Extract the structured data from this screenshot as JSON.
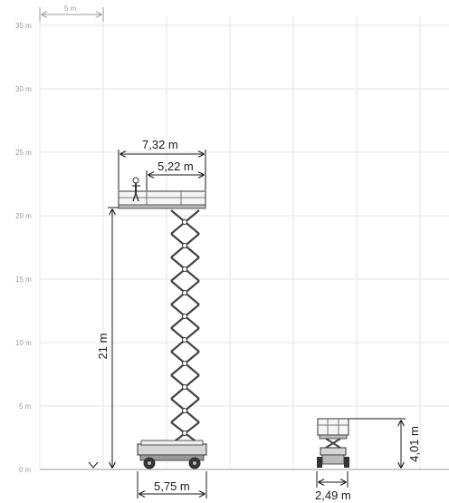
{
  "scale": {
    "label": "5 m"
  },
  "y_axis": {
    "labels": [
      "35 m",
      "30 m",
      "25 m",
      "20 m",
      "15 m",
      "10 m",
      "5 m",
      "0 m"
    ]
  },
  "dimensions": {
    "platform_total": "7,32 m",
    "platform_extension": "5,22 m",
    "platform_height": "21 m",
    "base_length": "5,75 m",
    "stowed_height": "4,01 m",
    "stowed_width": "2,49 m"
  }
}
